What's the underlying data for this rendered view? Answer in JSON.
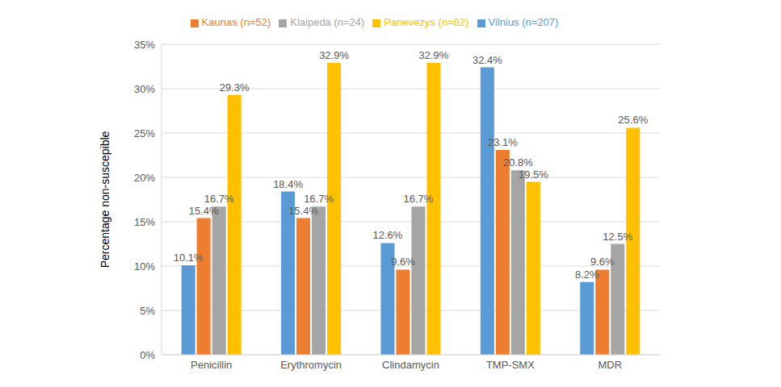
{
  "chart_data": {
    "type": "bar",
    "y_label": "Percentage non-suscepible",
    "categories": [
      "Penicillin",
      "Erythromycin",
      "Clindamycin",
      "TMP-SMX",
      "MDR"
    ],
    "series": [
      {
        "name": "Vilnius (n=207)",
        "color": "#5b9bd5",
        "values": [
          10.1,
          18.4,
          12.6,
          32.4,
          8.2
        ],
        "value_labels": [
          "10.1%",
          "18.4%",
          "12.6%",
          "32.4%",
          "8.2%"
        ]
      },
      {
        "name": "Kaunas (n=52)",
        "color": "#ed7d31",
        "values": [
          15.4,
          15.4,
          9.6,
          23.1,
          9.6
        ],
        "value_labels": [
          "15.4%",
          "15.4%",
          "9.6%",
          "23.1%",
          "9.6%"
        ]
      },
      {
        "name": "Klaipeda (n=24)",
        "color": "#a5a5a5",
        "values": [
          16.7,
          16.7,
          16.7,
          20.8,
          12.5
        ],
        "value_labels": [
          "16.7%",
          "16.7%",
          "16.7%",
          "20.8%",
          "12.5%"
        ]
      },
      {
        "name": "Panevezys (n=82)",
        "color": "#ffc000",
        "values": [
          29.3,
          32.9,
          32.9,
          19.5,
          25.6
        ],
        "value_labels": [
          "29.3%",
          "32.9%",
          "32.9%",
          "19.5%",
          "25.6%"
        ]
      }
    ],
    "ylim": [
      0,
      35
    ],
    "yticks": [
      {
        "value": 0,
        "label": "0%"
      },
      {
        "value": 5,
        "label": "5%"
      },
      {
        "value": 10,
        "label": "10%"
      },
      {
        "value": 15,
        "label": "15%"
      },
      {
        "value": 20,
        "label": "20%"
      },
      {
        "value": 25,
        "label": "25%"
      },
      {
        "value": 30,
        "label": "30%"
      },
      {
        "value": 35,
        "label": "35%"
      }
    ],
    "grid": true,
    "data_labels": true,
    "legend": "top"
  }
}
